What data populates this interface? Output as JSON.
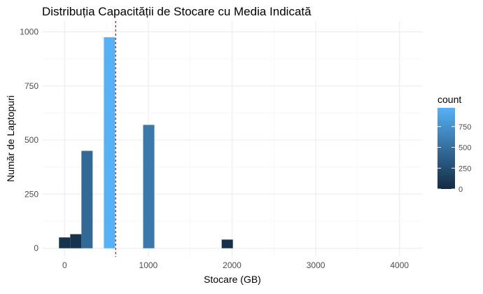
{
  "chart_data": {
    "type": "bar",
    "title": "Distribuția Capacității de Stocare cu Media Indicată",
    "xlabel": "Stocare (GB)",
    "ylabel": "Număr de Laptopuri",
    "xlim": [
      -270,
      4270
    ],
    "ylim": [
      -40,
      1050
    ],
    "x_ticks": [
      0,
      1000,
      2000,
      3000,
      4000
    ],
    "x_tick_labels": [
      "0",
      "1000",
      "2000",
      "3000",
      "4000"
    ],
    "y_ticks": [
      0,
      250,
      500,
      750,
      1000
    ],
    "y_tick_labels": [
      "0",
      "250",
      "500",
      "750",
      "1000"
    ],
    "bin_width": 134,
    "bars": [
      {
        "x": 0,
        "count": 50
      },
      {
        "x": 134,
        "count": 65
      },
      {
        "x": 268,
        "count": 450
      },
      {
        "x": 536,
        "count": 975
      },
      {
        "x": 1005,
        "count": 570
      },
      {
        "x": 1943,
        "count": 40
      }
    ],
    "mean_line": {
      "x": 610,
      "color": "#cc0000"
    },
    "legend": {
      "title": "count",
      "position": "right",
      "labels": [
        "750",
        "500",
        "250",
        "0"
      ],
      "values": [
        750,
        500,
        250,
        0
      ],
      "range": [
        0,
        975
      ],
      "color_low": "#132b43",
      "color_high": "#56b1f7"
    },
    "grid": true
  }
}
